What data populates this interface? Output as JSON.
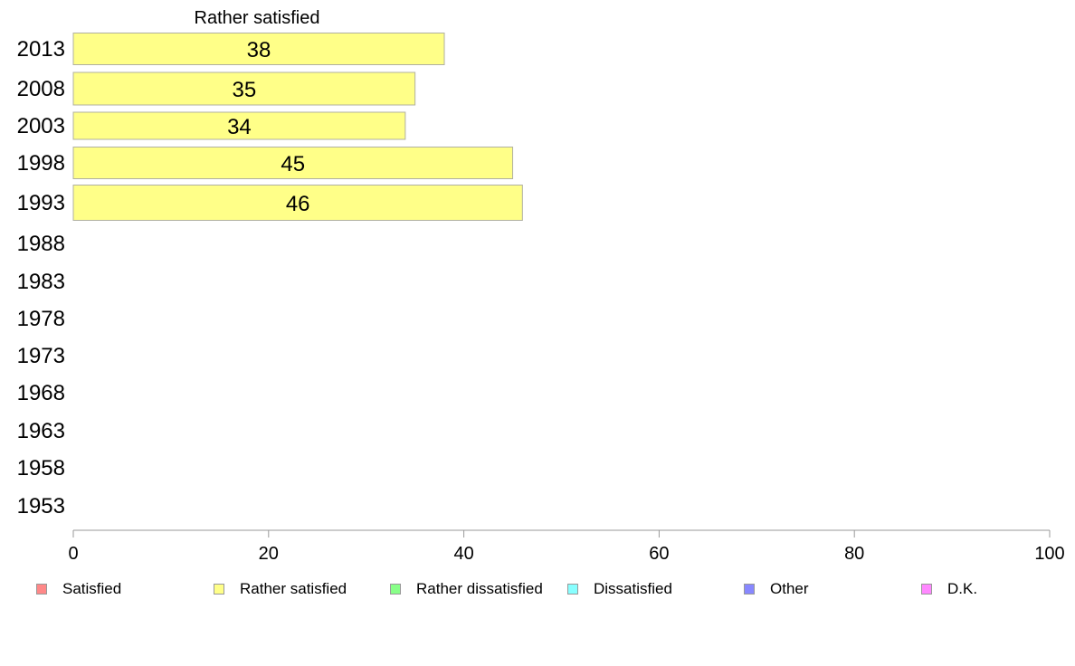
{
  "chart_data": {
    "type": "bar",
    "orientation": "horizontal",
    "title": "",
    "series_title": "Rather satisfied",
    "categories": [
      "2013",
      "2008",
      "2003",
      "1998",
      "1993",
      "1988",
      "1983",
      "1978",
      "1973",
      "1968",
      "1963",
      "1958",
      "1953"
    ],
    "series": [
      {
        "name": "Rather satisfied",
        "values": [
          38,
          35,
          34,
          45,
          46,
          null,
          null,
          null,
          null,
          null,
          null,
          null,
          null
        ]
      }
    ],
    "value_labels": [
      "38",
      "35",
      "34",
      "45",
      "46",
      "",
      "",
      "",
      "",
      "",
      "",
      "",
      ""
    ],
    "xlim": [
      0,
      100
    ],
    "xticks": [
      "0",
      "20",
      "40",
      "60",
      "80",
      "100"
    ],
    "grid": false,
    "legend_position": "bottom",
    "bar_color": "#ffff88",
    "bar_border_color": "#b0b0a0",
    "axis_color": "#999999"
  },
  "legend": [
    {
      "label": "Satisfied",
      "color": "#ff8888"
    },
    {
      "label": "Rather satisfied",
      "color": "#ffff88"
    },
    {
      "label": "Rather dissatisfied",
      "color": "#88ff88"
    },
    {
      "label": "Dissatisfied",
      "color": "#88ffff"
    },
    {
      "label": "Other",
      "color": "#8888ff"
    },
    {
      "label": "D.K.",
      "color": "#ff88ff"
    }
  ]
}
